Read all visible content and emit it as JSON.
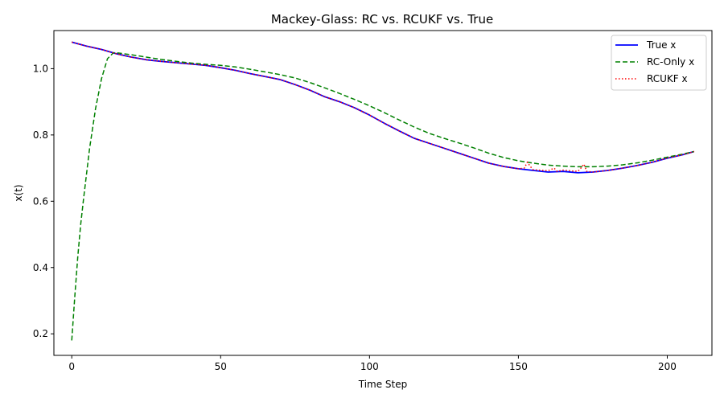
{
  "chart_data": {
    "type": "line",
    "title": "Mackey-Glass: RC vs. RCUKF vs. True",
    "xlabel": "Time Step",
    "ylabel": "x(t)",
    "xlim": [
      -6,
      215
    ],
    "ylim": [
      0.135,
      1.115
    ],
    "xticks": [
      0,
      50,
      100,
      150,
      200
    ],
    "xtick_labels": [
      "0",
      "50",
      "100",
      "150",
      "200"
    ],
    "yticks": [
      0.2,
      0.4,
      0.6,
      0.8,
      1.0
    ],
    "ytick_labels": [
      "0.2",
      "0.4",
      "0.6",
      "0.8",
      "1.0"
    ],
    "grid": false,
    "legend_position": "top-right",
    "series": [
      {
        "name": "True x",
        "color": "#0000ff",
        "style": "solid",
        "x": [
          0,
          5,
          10,
          15,
          20,
          25,
          30,
          35,
          40,
          45,
          50,
          55,
          60,
          65,
          70,
          75,
          80,
          85,
          90,
          95,
          100,
          105,
          110,
          115,
          120,
          125,
          130,
          135,
          140,
          145,
          150,
          155,
          160,
          165,
          170,
          175,
          180,
          185,
          190,
          195,
          200,
          205,
          209
        ],
        "y": [
          1.08,
          1.068,
          1.058,
          1.045,
          1.035,
          1.027,
          1.022,
          1.018,
          1.014,
          1.01,
          1.003,
          0.995,
          0.985,
          0.976,
          0.967,
          0.952,
          0.935,
          0.915,
          0.9,
          0.882,
          0.86,
          0.835,
          0.812,
          0.79,
          0.775,
          0.76,
          0.745,
          0.73,
          0.715,
          0.705,
          0.698,
          0.693,
          0.688,
          0.69,
          0.686,
          0.688,
          0.693,
          0.7,
          0.708,
          0.718,
          0.73,
          0.74,
          0.75
        ]
      },
      {
        "name": "RC-Only x",
        "color": "#008000",
        "style": "dashed",
        "x": [
          0,
          1,
          2,
          3,
          4,
          6,
          8,
          10,
          12,
          14,
          15,
          20,
          25,
          30,
          35,
          40,
          45,
          50,
          55,
          60,
          65,
          70,
          75,
          80,
          85,
          90,
          95,
          100,
          105,
          110,
          115,
          120,
          125,
          130,
          135,
          140,
          145,
          150,
          155,
          160,
          165,
          170,
          175,
          180,
          185,
          190,
          195,
          200,
          205,
          209
        ],
        "y": [
          0.18,
          0.31,
          0.43,
          0.53,
          0.61,
          0.76,
          0.88,
          0.97,
          1.03,
          1.048,
          1.048,
          1.042,
          1.035,
          1.028,
          1.022,
          1.017,
          1.013,
          1.01,
          1.005,
          0.998,
          0.99,
          0.982,
          0.972,
          0.958,
          0.942,
          0.925,
          0.907,
          0.888,
          0.867,
          0.845,
          0.824,
          0.805,
          0.79,
          0.776,
          0.761,
          0.745,
          0.732,
          0.722,
          0.715,
          0.709,
          0.706,
          0.704,
          0.704,
          0.706,
          0.71,
          0.716,
          0.724,
          0.733,
          0.742,
          0.75
        ]
      },
      {
        "name": "RCUKF x",
        "color": "#ff0000",
        "style": "dotted",
        "x": [
          0,
          5,
          10,
          15,
          20,
          25,
          30,
          35,
          40,
          45,
          50,
          55,
          60,
          65,
          70,
          75,
          80,
          85,
          90,
          95,
          100,
          105,
          110,
          115,
          120,
          125,
          130,
          135,
          140,
          145,
          150,
          152,
          153,
          154,
          155,
          160,
          162,
          163,
          165,
          170,
          171,
          172,
          173,
          175,
          180,
          185,
          190,
          195,
          200,
          205,
          209
        ],
        "y": [
          1.08,
          1.068,
          1.058,
          1.045,
          1.035,
          1.027,
          1.022,
          1.018,
          1.014,
          1.01,
          1.003,
          0.995,
          0.985,
          0.976,
          0.967,
          0.952,
          0.935,
          0.915,
          0.9,
          0.882,
          0.86,
          0.835,
          0.812,
          0.79,
          0.775,
          0.76,
          0.745,
          0.73,
          0.715,
          0.705,
          0.698,
          0.7,
          0.718,
          0.705,
          0.695,
          0.692,
          0.7,
          0.69,
          0.694,
          0.69,
          0.7,
          0.712,
          0.69,
          0.688,
          0.693,
          0.7,
          0.708,
          0.718,
          0.73,
          0.74,
          0.75
        ]
      }
    ]
  }
}
